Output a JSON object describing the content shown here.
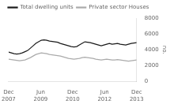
{
  "chart_data": {
    "type": "line",
    "ylabel": "no.",
    "x": [
      0,
      1.5319,
      3.0638,
      4.5957,
      6.1277,
      7.6596,
      9.1915,
      10.7234,
      12.2553,
      13.7872,
      15.3191,
      16.8511,
      18.383,
      19.9149,
      21.4468,
      22.9787,
      24.5106,
      26.0426,
      27.5745,
      29.1064,
      30.6383,
      32.1702,
      33.7021,
      35.234,
      36.766,
      38.2979,
      39.8298,
      41.3617,
      42.8936,
      44.4255,
      45.9574,
      47.4894,
      49.0213,
      50.5532,
      52.0851,
      53.617,
      55.1489,
      56.6809,
      58.2128,
      59.7447,
      61.2766,
      62.8085,
      64.3404,
      65.8723,
      67.4043,
      68.9362,
      70.4681,
      72
    ],
    "series": [
      {
        "name": "Total dwelling units",
        "color": "#1a1a1a",
        "values": [
          3700,
          3600,
          3500,
          3450,
          3500,
          3600,
          3750,
          3900,
          4200,
          4500,
          4800,
          5000,
          5200,
          5250,
          5200,
          5100,
          5050,
          5000,
          4950,
          4800,
          4700,
          4600,
          4500,
          4400,
          4350,
          4400,
          4600,
          4800,
          5000,
          4950,
          4900,
          4800,
          4700,
          4600,
          4500,
          4600,
          4700,
          4800,
          4700,
          4750,
          4800,
          4700,
          4650,
          4600,
          4700,
          4800,
          4850,
          4900
        ]
      },
      {
        "name": "Private sector Houses",
        "color": "#aaaaaa",
        "values": [
          2800,
          2750,
          2700,
          2650,
          2600,
          2650,
          2700,
          2850,
          3000,
          3200,
          3400,
          3500,
          3600,
          3550,
          3500,
          3400,
          3350,
          3300,
          3250,
          3200,
          3100,
          3000,
          2900,
          2850,
          2800,
          2850,
          2900,
          3000,
          3050,
          3000,
          2950,
          2900,
          2800,
          2750,
          2700,
          2750,
          2800,
          2750,
          2700,
          2700,
          2750,
          2700,
          2650,
          2600,
          2550,
          2600,
          2650,
          2700
        ]
      }
    ],
    "xlim": [
      0,
      72
    ],
    "xticks": [
      {
        "value": 0,
        "label": "Dec\n2007"
      },
      {
        "value": 18,
        "label": "Jun\n2009"
      },
      {
        "value": 36,
        "label": "Dec\n2010"
      },
      {
        "value": 54,
        "label": "Jun\n2012"
      },
      {
        "value": 72,
        "label": "Dec\n2013"
      }
    ],
    "ylim": [
      0,
      8000
    ],
    "yticks": [
      0,
      2000,
      4000,
      6000,
      8000
    ],
    "grid": false,
    "legend": "upper left"
  }
}
